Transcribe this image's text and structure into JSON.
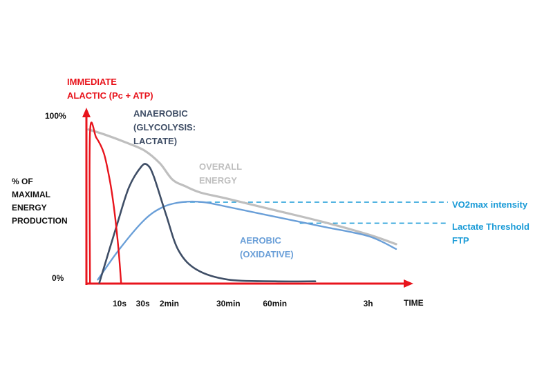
{
  "chart_data": {
    "type": "line",
    "y_axis": {
      "label_lines": [
        "% OF",
        "MAXIMAL",
        "ENERGY",
        "PRODUCTION"
      ],
      "top_label": "100%",
      "bottom_label": "0%",
      "ylim": [
        0,
        100
      ]
    },
    "x_axis": {
      "label": "TIME",
      "ticks": [
        {
          "label": "10s",
          "at": 1.0
        },
        {
          "label": "30s",
          "at": 1.75
        },
        {
          "label": "2min",
          "at": 2.6
        },
        {
          "label": "30min",
          "at": 4.5
        },
        {
          "label": "60min",
          "at": 6.0
        },
        {
          "label": "3h",
          "at": 9.0
        }
      ],
      "xlim": [
        0,
        10.1
      ]
    },
    "series": [
      {
        "name": "overall",
        "label_lines": [
          "OVERALL",
          "ENERGY"
        ],
        "color": "#bfbfbf",
        "points": [
          [
            0,
            95
          ],
          [
            0.5,
            92
          ],
          [
            1.2,
            87
          ],
          [
            1.8,
            82
          ],
          [
            2.3,
            74
          ],
          [
            2.7,
            64
          ],
          [
            3.1,
            60
          ],
          [
            3.6,
            56
          ],
          [
            4.5,
            52
          ],
          [
            6.0,
            45
          ],
          [
            7.5,
            38
          ],
          [
            9.0,
            30
          ],
          [
            9.9,
            24
          ]
        ]
      },
      {
        "name": "immediate",
        "label_lines": [
          "IMMEDIATE",
          "ALACTIC (Pc + ATP)"
        ],
        "color": "#e8141c",
        "points": [
          [
            0.05,
            0
          ],
          [
            0.05,
            93
          ],
          [
            0.25,
            90
          ],
          [
            0.5,
            80
          ],
          [
            0.7,
            62
          ],
          [
            0.85,
            42
          ],
          [
            0.97,
            20
          ],
          [
            1.05,
            0
          ]
        ]
      },
      {
        "name": "anaerobic",
        "label_lines": [
          "ANAEROBIC",
          "(GLYCOLYSIS:",
          "LACTATE)"
        ],
        "color": "#3f4e66",
        "points": [
          [
            0.35,
            0
          ],
          [
            0.9,
            35
          ],
          [
            1.3,
            59
          ],
          [
            1.7,
            72
          ],
          [
            1.9,
            73
          ],
          [
            2.1,
            66
          ],
          [
            2.5,
            42
          ],
          [
            2.9,
            20
          ],
          [
            3.5,
            8
          ],
          [
            4.5,
            2
          ],
          [
            6.0,
            1
          ],
          [
            7.3,
            1
          ]
        ]
      },
      {
        "name": "aerobic",
        "label_lines": [
          "AEROBIC",
          "(OXIDATIVE)"
        ],
        "color": "#6a9fd8",
        "points": [
          [
            0.3,
            2
          ],
          [
            1.0,
            21
          ],
          [
            1.8,
            39
          ],
          [
            2.4,
            47
          ],
          [
            3.0,
            50
          ],
          [
            3.7,
            50
          ],
          [
            4.5,
            47
          ],
          [
            6.0,
            41
          ],
          [
            7.5,
            35
          ],
          [
            9.0,
            29
          ],
          [
            9.9,
            21
          ]
        ]
      }
    ],
    "reference_lines": [
      {
        "label": "VO2max intensity",
        "y": 50,
        "from_x": 3.0,
        "color": "#1a9bd7"
      },
      {
        "label_lines": [
          "Lactate Threshold",
          "FTP"
        ],
        "y": 37,
        "from_x": 6.8,
        "color": "#1a9bd7"
      }
    ]
  }
}
